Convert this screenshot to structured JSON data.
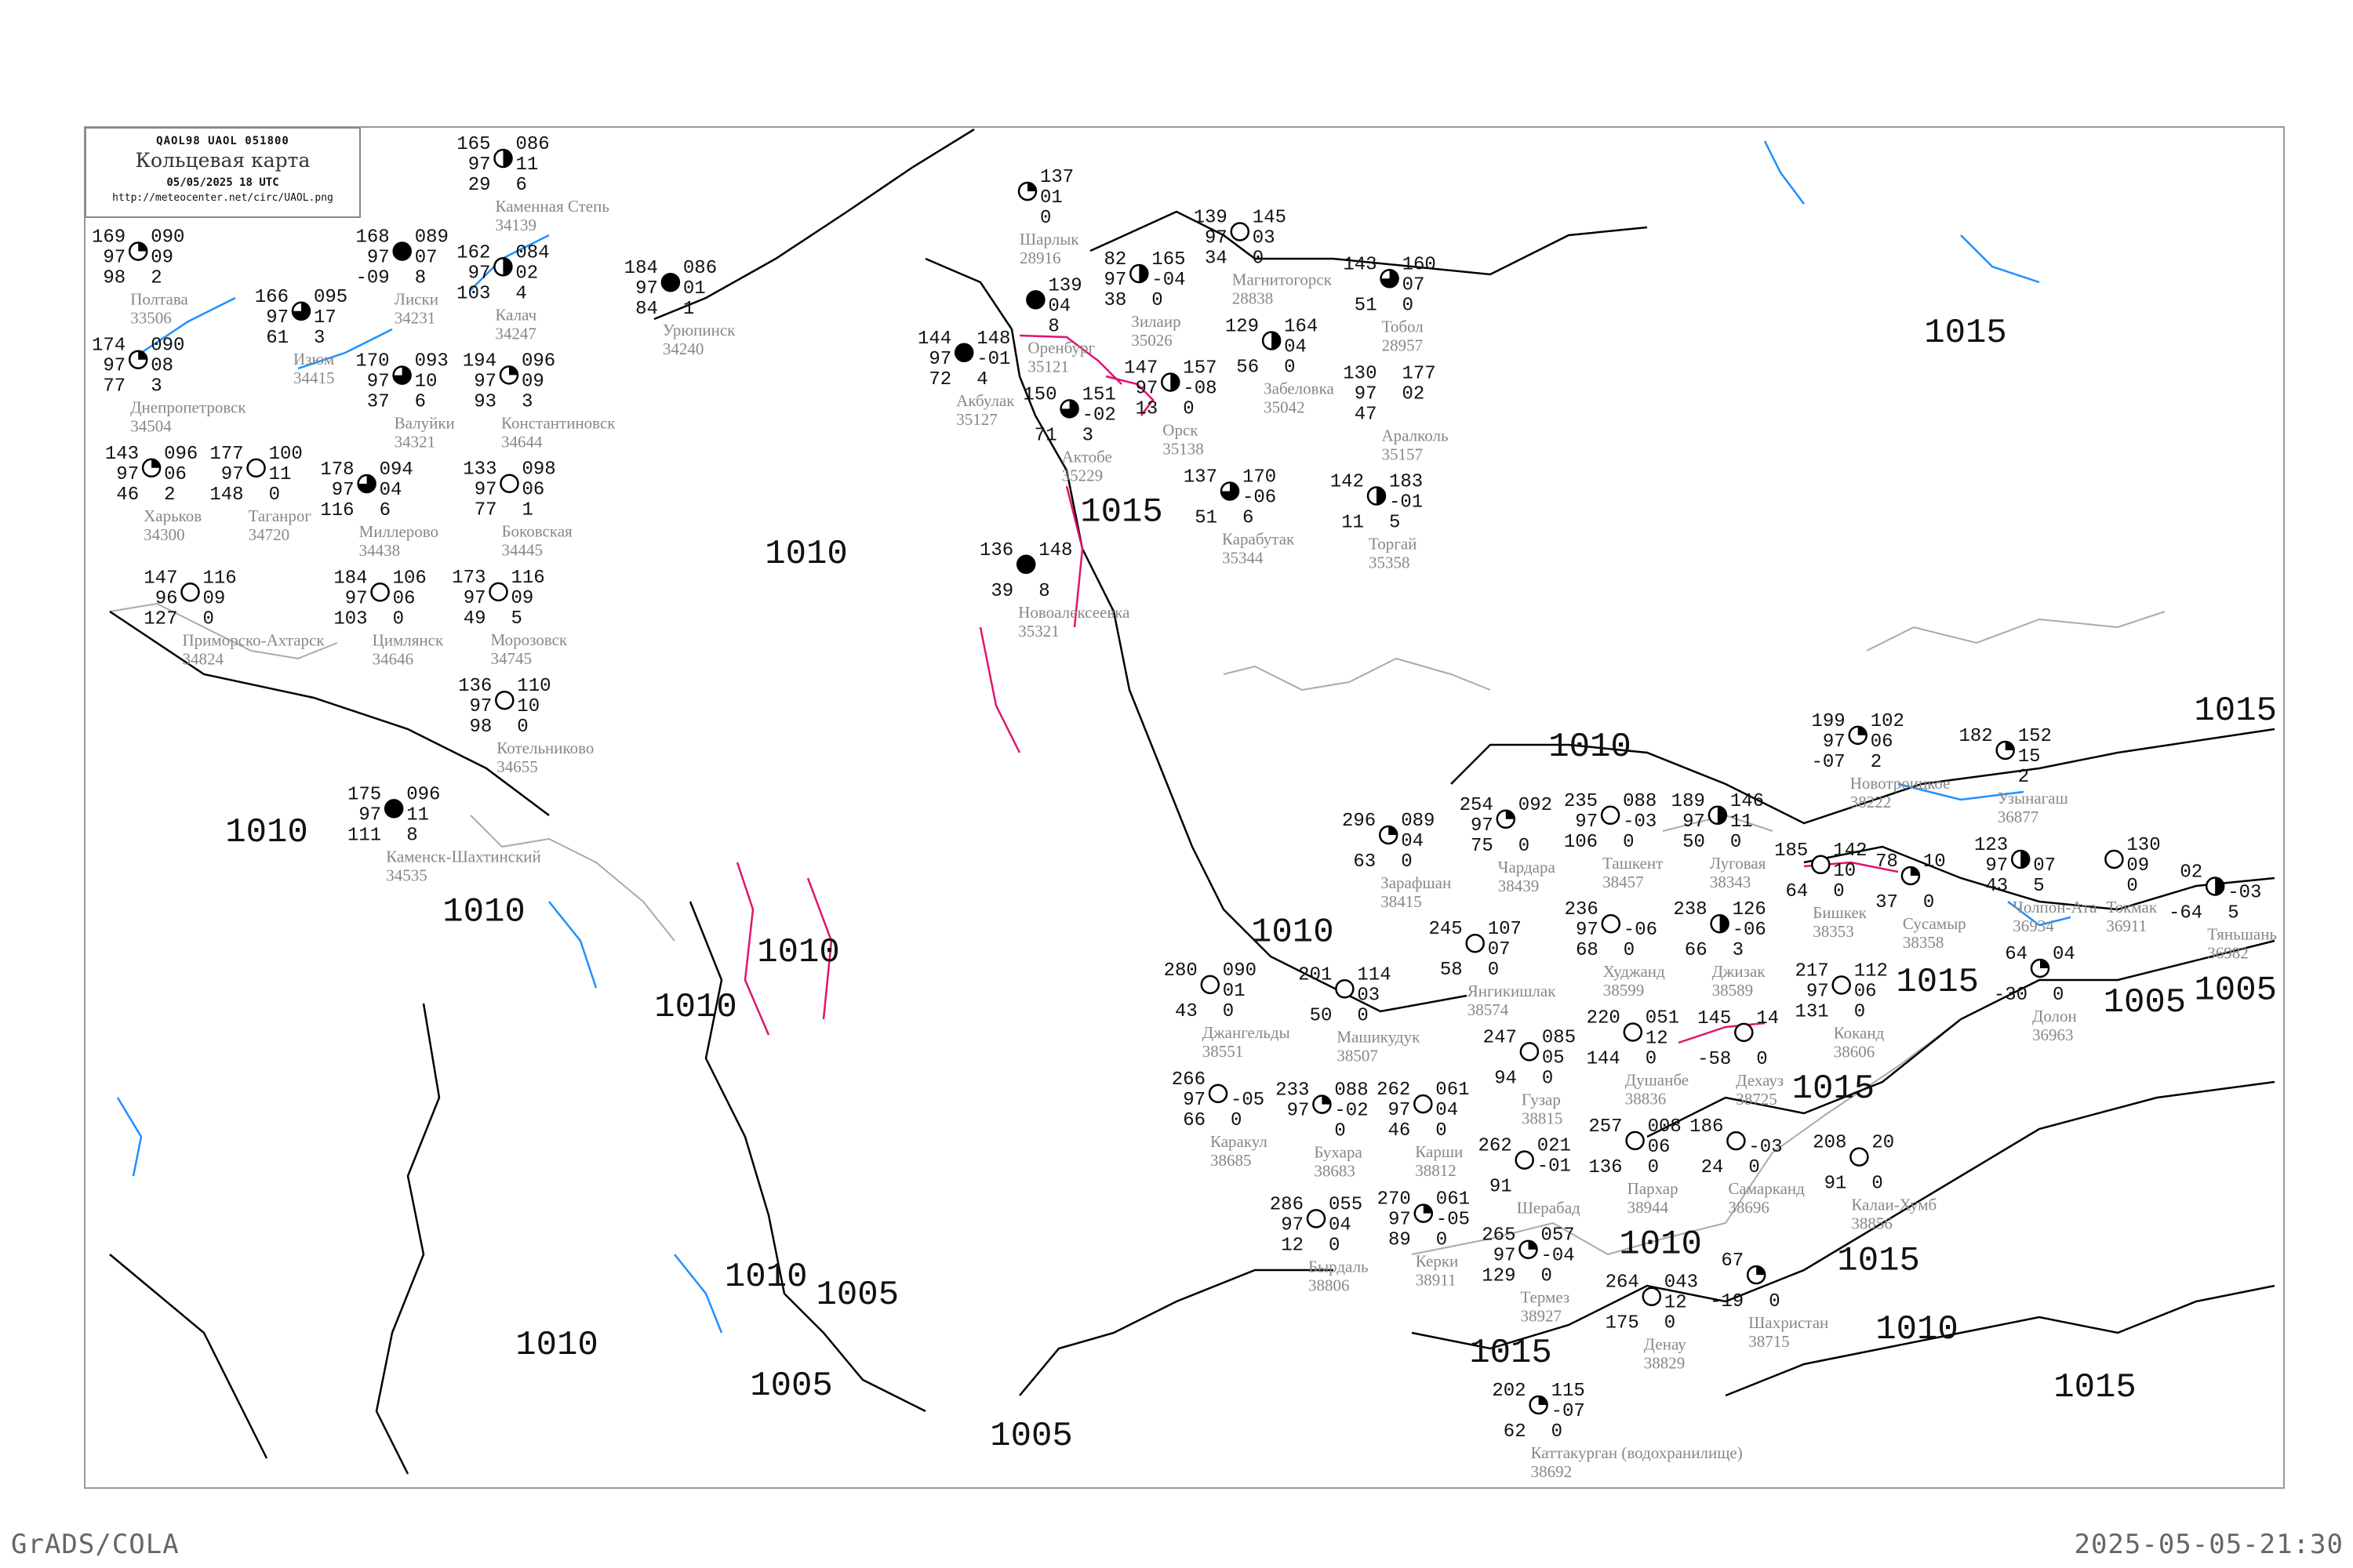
{
  "header": {
    "code": "QAOL98  UAOL  051800",
    "title": "Кольцевая карта",
    "datetime": "05/05/2025 18 UTC",
    "url": "http://meteocenter.net/circ/UAOL.png"
  },
  "footer": {
    "left": "GrADS/COLA",
    "right": "2025-05-05-21:30"
  },
  "colors": {
    "isobar": "#000000",
    "isotherm": "#1e90ff",
    "isallobar": "#e0146e",
    "coast": "#999999",
    "station_name": "#888888"
  },
  "isobar_labels": [
    "1010",
    "1010",
    "1010",
    "1015",
    "1015",
    "1005",
    "1015",
    "1010",
    "1015",
    "1010",
    "1010",
    "1005",
    "1005",
    "1005",
    "1010",
    "1015",
    "1010",
    "1015",
    "1010",
    "1010",
    "1015",
    "1015",
    "1010",
    "1005"
  ],
  "stations": [
    {
      "name": "Полтава",
      "id": "33506",
      "tl": "169",
      "ml": "97",
      "bl": "98",
      "tr": "090",
      "mr": "09",
      "br": "2",
      "cover": 0.25
    },
    {
      "name": "Харьков",
      "id": "34300",
      "tl": "143",
      "ml": "97",
      "bl": "46",
      "tr": "096",
      "mr": "06",
      "br": "2",
      "cover": 0.25
    },
    {
      "name": "Днепропетровск",
      "id": "34504",
      "tl": "174",
      "ml": "97",
      "bl": "77",
      "tr": "090",
      "mr": "08",
      "br": "3",
      "cover": 0.25
    },
    {
      "name": "Изюм",
      "id": "34415",
      "tl": "166",
      "ml": "97",
      "bl": "61",
      "tr": "095",
      "mr": "17",
      "br": "3",
      "cover": 0.75
    },
    {
      "name": "Валуйки",
      "id": "34321",
      "tl": "170",
      "ml": "97",
      "bl": "37",
      "tr": "093",
      "mr": "10",
      "br": "6",
      "cover": 0.75
    },
    {
      "name": "Лиски",
      "id": "34231",
      "tl": "168",
      "ml": "97",
      "bl": "-09",
      "tr": "089",
      "mr": "07",
      "br": "8",
      "cover": 1
    },
    {
      "name": "Каменная Степь",
      "id": "34139",
      "tl": "165",
      "ml": "97",
      "bl": "29",
      "tr": "086",
      "mr": "11",
      "br": "6",
      "cover": 0.5
    },
    {
      "name": "Калач",
      "id": "34247",
      "tl": "162",
      "ml": "97",
      "bl": "103",
      "tr": "084",
      "mr": "02",
      "br": "4",
      "cover": 0.5
    },
    {
      "name": "Урюпинск",
      "id": "34240",
      "tl": "184",
      "ml": "97",
      "bl": "84",
      "tr": "086",
      "mr": "01",
      "br": "1",
      "cover": 1
    },
    {
      "name": "Миллерово",
      "id": "34438",
      "tl": "178",
      "ml": "97",
      "bl": "116",
      "tr": "094",
      "mr": "04",
      "br": "6",
      "cover": 0.75
    },
    {
      "name": "Боковская",
      "id": "34445",
      "tl": "133",
      "ml": "97",
      "bl": "77",
      "tr": "098",
      "mr": "06",
      "br": "1",
      "cover": 0
    },
    {
      "name": "Каменск-Шахтинский",
      "id": "34535",
      "tl": "175",
      "ml": "97",
      "bl": "111",
      "tr": "096",
      "mr": "11",
      "br": "8",
      "cover": 1
    },
    {
      "name": "Таганрог",
      "id": "34720",
      "tl": "177",
      "ml": "97",
      "bl": "148",
      "tr": "100",
      "mr": "11",
      "br": "0",
      "cover": 0
    },
    {
      "name": "Константиновск",
      "id": "34644",
      "tl": "194",
      "ml": "97",
      "bl": "93",
      "tr": "096",
      "mr": "09",
      "br": "3",
      "cover": 0.25
    },
    {
      "name": "Цимлянск",
      "id": "34646",
      "tl": "184",
      "ml": "97",
      "bl": "103",
      "tr": "106",
      "mr": "06",
      "br": "0",
      "cover": 0
    },
    {
      "name": "Котельниково",
      "id": "34655",
      "tl": "136",
      "ml": "97",
      "bl": "98",
      "tr": "110",
      "mr": "10",
      "br": "0",
      "cover": 0
    },
    {
      "name": "Морозовск",
      "id": "34745",
      "tl": "173",
      "ml": "97",
      "bl": "49",
      "tr": "116",
      "mr": "09",
      "br": "5",
      "cover": 0
    },
    {
      "name": "Приморско-Ахтарск",
      "id": "34824",
      "tl": "147",
      "ml": "96",
      "bl": "127",
      "tr": "116",
      "mr": "09",
      "br": "0",
      "cover": 0
    },
    {
      "name": "Шарлык",
      "id": "28916",
      "tl": "",
      "ml": "",
      "bl": "",
      "tr": "137",
      "mr": "01",
      "br": "0",
      "cover": 0.25
    },
    {
      "name": "Магнитогорск",
      "id": "28838",
      "tl": "139",
      "ml": "97",
      "bl": "34",
      "tr": "145",
      "mr": "03",
      "br": "0",
      "cover": 0
    },
    {
      "name": "Зилаир",
      "id": "35026",
      "tl": "82",
      "ml": "97",
      "bl": "38",
      "tr": "165",
      "mr": "-04",
      "br": "0",
      "cover": 0.5
    },
    {
      "name": "Забеловка",
      "id": "35042",
      "tl": "129",
      "ml": "",
      "bl": "56",
      "tr": "164",
      "mr": "04",
      "br": "0",
      "cover": 0.5
    },
    {
      "name": "Тобол",
      "id": "28957",
      "tl": "143",
      "ml": "",
      "bl": "51",
      "tr": "160",
      "mr": "07",
      "br": "0",
      "cover": 0.75
    },
    {
      "name": "Оренбург",
      "id": "35121",
      "tl": "",
      "ml": "",
      "bl": "",
      "tr": "139",
      "mr": "04",
      "br": "8",
      "cover": 1
    },
    {
      "name": "Акбулак",
      "id": "35127",
      "tl": "144",
      "ml": "97",
      "bl": "72",
      "tr": "148",
      "mr": "-01",
      "br": "4",
      "cover": 1
    },
    {
      "name": "Орск",
      "id": "35138",
      "tl": "147",
      "ml": "97",
      "bl": "13",
      "tr": "157",
      "mr": "-08",
      "br": "0",
      "cover": 0.5
    },
    {
      "name": "Аралколь",
      "id": "35157",
      "tl": "130",
      "ml": "97",
      "bl": "47",
      "tr": "177",
      "mr": "02",
      "br": "",
      "cover": -1
    },
    {
      "name": "Новоалексеевка",
      "id": "35321",
      "tl": "136",
      "ml": "",
      "bl": "39",
      "tr": "148",
      "mr": "",
      "br": "8",
      "cover": 1
    },
    {
      "name": "Актобе",
      "id": "35229",
      "tl": "150",
      "ml": "",
      "bl": "71",
      "tr": "151",
      "mr": "-02",
      "br": "3",
      "cover": 0.75
    },
    {
      "name": "Карабутак",
      "id": "35344",
      "tl": "137",
      "ml": "",
      "bl": "51",
      "tr": "170",
      "mr": "-06",
      "br": "6",
      "cover": 0.75
    },
    {
      "name": "Торгай",
      "id": "35358",
      "tl": "142",
      "ml": "",
      "bl": "11",
      "tr": "183",
      "mr": "-01",
      "br": "5",
      "cover": 0.5
    },
    {
      "name": "Новотроицкое",
      "id": "38222",
      "tl": "199",
      "ml": "97",
      "bl": "-07",
      "tr": "102",
      "mr": "06",
      "br": "2",
      "cover": 0.25
    },
    {
      "name": "Луговая",
      "id": "38343",
      "tl": "189",
      "ml": "97",
      "bl": "50",
      "tr": "146",
      "mr": "11",
      "br": "0",
      "cover": 0.5
    },
    {
      "name": "Бишкек",
      "id": "38353",
      "tl": "185",
      "ml": "",
      "bl": "64",
      "tr": "142",
      "mr": "10",
      "br": "0",
      "cover": 0
    },
    {
      "name": "Токмак",
      "id": "36911",
      "tl": "",
      "ml": "",
      "bl": "",
      "tr": "130",
      "mr": "09",
      "br": "0",
      "cover": 0
    },
    {
      "name": "Сусамыр",
      "id": "38358",
      "tl": "78",
      "ml": "",
      "bl": "37",
      "tr": "10",
      "mr": "",
      "br": "0",
      "cover": 0.25
    },
    {
      "name": "Долон",
      "id": "36963",
      "tl": "64",
      "ml": "",
      "bl": "-30",
      "tr": "04",
      "mr": "",
      "br": "0",
      "cover": 0.25
    },
    {
      "name": "Узынагаш",
      "id": "36877",
      "tl": "182",
      "ml": "",
      "bl": "",
      "tr": "152",
      "mr": "15",
      "br": "2",
      "cover": 0.25
    },
    {
      "name": "Чолпон-Ата",
      "id": "36934",
      "tl": "123",
      "ml": "97",
      "bl": "43",
      "tr": "",
      "mr": "07",
      "br": "5",
      "cover": 0.5
    },
    {
      "name": "Тяньшань",
      "id": "36982",
      "tl": "02",
      "ml": "",
      "bl": "-64",
      "tr": "",
      "mr": "-03",
      "br": "5",
      "cover": 0.5
    },
    {
      "name": "Джангельды",
      "id": "38551",
      "tl": "280",
      "ml": "",
      "bl": "43",
      "tr": "090",
      "mr": "01",
      "br": "0",
      "cover": 0
    },
    {
      "name": "Зарафшан",
      "id": "38415",
      "tl": "296",
      "ml": "",
      "bl": "63",
      "tr": "089",
      "mr": "04",
      "br": "0",
      "cover": 0.25
    },
    {
      "name": "Машикудук",
      "id": "38507",
      "tl": "201",
      "ml": "",
      "bl": "50",
      "tr": "114",
      "mr": "03",
      "br": "0",
      "cover": 0
    },
    {
      "name": "Бухара",
      "id": "38683",
      "tl": "233",
      "ml": "97",
      "bl": "",
      "tr": "088",
      "mr": "-02",
      "br": "0",
      "cover": 0.25
    },
    {
      "name": "Каракул",
      "id": "38685",
      "tl": "266",
      "ml": "97",
      "bl": "66",
      "tr": "",
      "mr": "-05",
      "br": "0",
      "cover": 0
    },
    {
      "name": "Каттакурган (водохранилище)",
      "id": "38692",
      "tl": "202",
      "ml": "",
      "bl": "62",
      "tr": "115",
      "mr": "-07",
      "br": "0",
      "cover": 0.25
    },
    {
      "name": "Янгикишлак",
      "id": "38574",
      "tl": "245",
      "ml": "",
      "bl": "58",
      "tr": "107",
      "mr": "07",
      "br": "0",
      "cover": 0
    },
    {
      "name": "Самарканд",
      "id": "38696",
      "tl": "186",
      "ml": "",
      "bl": "24",
      "tr": "",
      "mr": "-03",
      "br": "0",
      "cover": 0
    },
    {
      "name": "Чардара",
      "id": "38439",
      "tl": "254",
      "ml": "97",
      "bl": "75",
      "tr": "092",
      "mr": "",
      "br": "0",
      "cover": 0.25
    },
    {
      "name": "Ташкент",
      "id": "38457",
      "tl": "235",
      "ml": "97",
      "bl": "106",
      "tr": "088",
      "mr": "-03",
      "br": "0",
      "cover": 0
    },
    {
      "name": "Джизак",
      "id": "38589",
      "tl": "238",
      "ml": "",
      "bl": "66",
      "tr": "126",
      "mr": "-06",
      "br": "3",
      "cover": 0.5
    },
    {
      "name": "Шахристан",
      "id": "38715",
      "tl": "67",
      "ml": "",
      "bl": "-19",
      "tr": "",
      "mr": "",
      "br": "0",
      "cover": 0.25
    },
    {
      "name": "Худжанд",
      "id": "38599",
      "tl": "236",
      "ml": "97",
      "bl": "68",
      "tr": "",
      "mr": "-06",
      "br": "0",
      "cover": 0
    },
    {
      "name": "Коканд",
      "id": "38606",
      "tl": "217",
      "ml": "97",
      "bl": "131",
      "tr": "112",
      "mr": "06",
      "br": "0",
      "cover": 0
    },
    {
      "name": "Дехауз",
      "id": "38725",
      "tl": "145",
      "ml": "",
      "bl": "-58",
      "tr": "14",
      "mr": "",
      "br": "0",
      "cover": 0
    },
    {
      "name": "Карши",
      "id": "38812",
      "tl": "262",
      "ml": "97",
      "bl": "46",
      "tr": "061",
      "mr": "04",
      "br": "0",
      "cover": 0
    },
    {
      "name": "Гузар",
      "id": "38815",
      "tl": "247",
      "ml": "",
      "bl": "94",
      "tr": "085",
      "mr": "05",
      "br": "0",
      "cover": 0
    },
    {
      "name": "Бырдаль",
      "id": "38806",
      "tl": "286",
      "ml": "97",
      "bl": "12",
      "tr": "055",
      "mr": "04",
      "br": "0",
      "cover": 0
    },
    {
      "name": "Денау",
      "id": "38829",
      "tl": "264",
      "ml": "",
      "bl": "175",
      "tr": "043",
      "mr": "12",
      "br": "0",
      "cover": 0
    },
    {
      "name": "Душанбе",
      "id": "38836",
      "tl": "220",
      "ml": "",
      "bl": "144",
      "tr": "051",
      "mr": "12",
      "br": "0",
      "cover": 0
    },
    {
      "name": "Керки",
      "id": "38911",
      "tl": "270",
      "ml": "97",
      "bl": "89",
      "tr": "061",
      "mr": "-05",
      "br": "0",
      "cover": 0.25
    },
    {
      "name": "Шерабад",
      "id": "",
      "tl": "262",
      "ml": "",
      "bl": "91",
      "tr": "021",
      "mr": "-01",
      "br": "",
      "cover": 0
    },
    {
      "name": "Термез",
      "id": "38927",
      "tl": "265",
      "ml": "97",
      "bl": "129",
      "tr": "057",
      "mr": "-04",
      "br": "0",
      "cover": 0.25
    },
    {
      "name": "Пархар",
      "id": "38944",
      "tl": "257",
      "ml": "",
      "bl": "136",
      "tr": "008",
      "mr": "06",
      "br": "0",
      "cover": 0
    },
    {
      "name": "Калаи-Хумб",
      "id": "38856",
      "tl": "208",
      "ml": "",
      "bl": "91",
      "tr": "20",
      "mr": "",
      "br": "0",
      "cover": 0
    }
  ]
}
